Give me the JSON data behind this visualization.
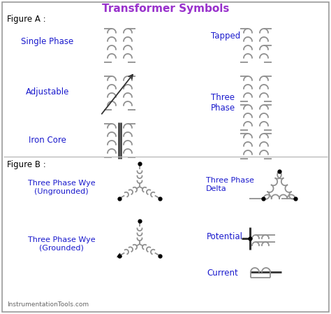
{
  "title": "Transformer Symbols",
  "title_color": "#9932CC",
  "label_color": "#1a1acd",
  "line_color": "#909090",
  "bg_color": "#FFFFFF",
  "border_color": "#999999",
  "fig_width": 4.74,
  "fig_height": 4.49,
  "labels": {
    "figure_a": "Figure A :",
    "figure_b": "Figure B :",
    "single_phase": "Single Phase",
    "adjustable": "Adjustable",
    "iron_core": "Iron Core",
    "tapped": "Tapped",
    "three_phase": "Three\nPhase",
    "three_phase_wye_ug": "Three Phase Wye\n(Ungrounded)",
    "three_phase_wye_g": "Three Phase Wye\n(Grounded)",
    "three_phase_delta": "Three Phase\nDelta",
    "potential": "Potential",
    "current": "Current",
    "footer": "InstrumentationTools.com"
  }
}
